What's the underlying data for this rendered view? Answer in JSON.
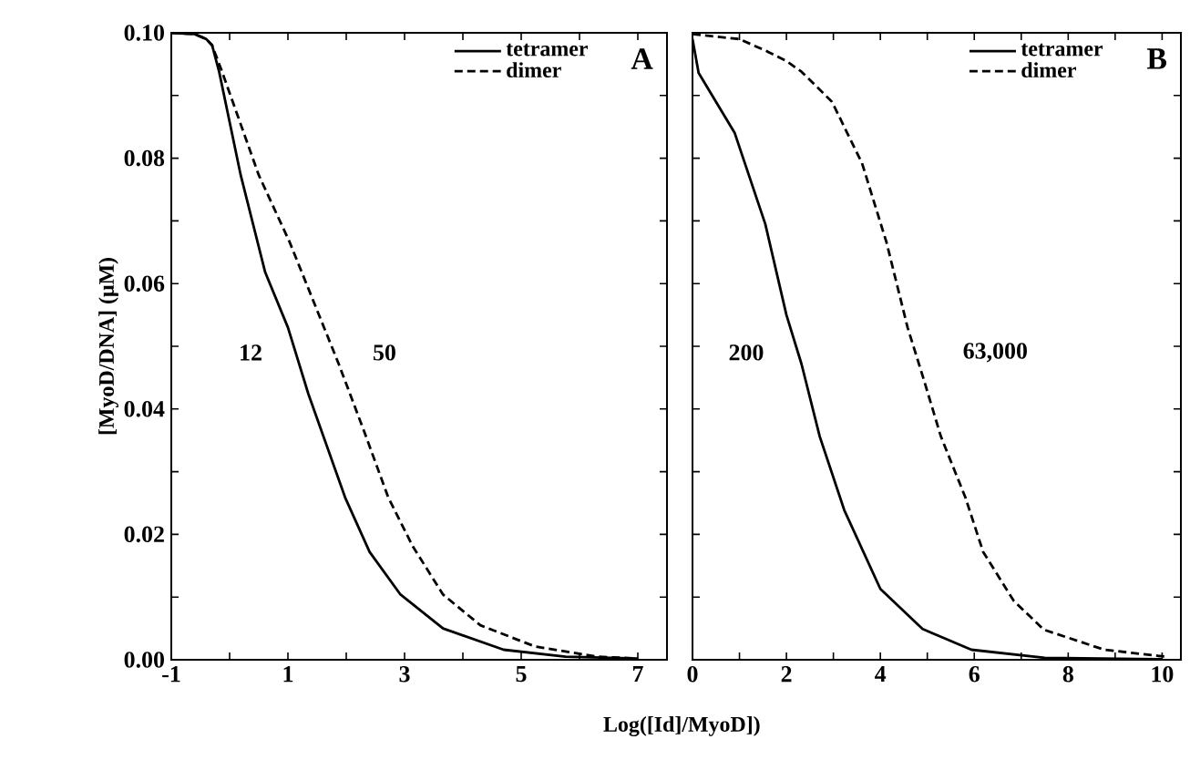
{
  "chart_data": [
    {
      "type": "line",
      "title": "A",
      "xlabel": "Log([Id]/MyoD])",
      "ylabel": "[MyoD/DNA]  (μM)",
      "legend": "top right",
      "marker": "none",
      "xlim": [
        -1,
        7.5
      ],
      "ylim": [
        0,
        0.1
      ],
      "xticks": [
        -1,
        {
          "value": 0,
          "label": null
        },
        1,
        {
          "value": 2,
          "label": null
        },
        3,
        {
          "value": 4,
          "label": null
        },
        5,
        {
          "value": 6,
          "label": null
        },
        7
      ],
      "yticks": [
        {
          "value": 0,
          "label": "0.00"
        },
        {
          "value": 0.01,
          "label": null
        },
        {
          "value": 0.02,
          "label": "0.02"
        },
        {
          "value": 0.03,
          "label": null
        },
        {
          "value": 0.04,
          "label": "0.04"
        },
        {
          "value": 0.05,
          "label": null
        },
        {
          "value": 0.06,
          "label": "0.06"
        },
        {
          "value": 0.07,
          "label": null
        },
        {
          "value": 0.08,
          "label": "0.08"
        },
        {
          "value": 0.09,
          "label": null
        },
        {
          "value": 0.1,
          "label": "0.10"
        }
      ],
      "series": [
        {
          "name": "tetramer",
          "color": "#000000",
          "line_style": "solid",
          "x": [
            -1,
            -0.6,
            -0.4,
            -0.3,
            -0.18,
            0.19,
            0.61,
            1.0,
            1.35,
            1.98,
            2.4,
            2.93,
            3.66,
            4.7,
            5.76,
            7
          ],
          "values": [
            0.1,
            0.0998,
            0.099,
            0.098,
            0.0938,
            0.0773,
            0.0618,
            0.053,
            0.0424,
            0.0259,
            0.0172,
            0.0104,
            0.005,
            0.0016,
            0.0005,
            0.0002
          ]
        },
        {
          "name": "dimer",
          "color": "#000000",
          "line_style": "dashed",
          "x": [
            -1,
            -0.6,
            -0.4,
            -0.3,
            -0.13,
            0.5,
            1.03,
            1.45,
            1.87,
            2.3,
            2.72,
            3.14,
            3.66,
            4.3,
            5.24,
            6.3,
            7
          ],
          "values": [
            0.1,
            0.0998,
            0.099,
            0.098,
            0.0938,
            0.0773,
            0.0666,
            0.0569,
            0.0472,
            0.0366,
            0.0259,
            0.0181,
            0.0104,
            0.0055,
            0.0021,
            0.0005,
            0.0002
          ]
        }
      ],
      "annotations": [
        "12",
        "50"
      ]
    },
    {
      "type": "line",
      "title": "B",
      "legend": "top right",
      "marker": "none",
      "tick_labels": "x",
      "xlim": [
        0,
        10.4
      ],
      "ylim": [
        0,
        0.1
      ],
      "xticks": [
        0,
        {
          "value": 1,
          "label": null
        },
        2,
        {
          "value": 3,
          "label": null
        },
        4,
        {
          "value": 5,
          "label": null
        },
        6,
        {
          "value": 7,
          "label": null
        },
        8,
        {
          "value": 9,
          "label": null
        },
        10
      ],
      "yticks": [
        {
          "value": 0,
          "label": null
        },
        {
          "value": 0.01,
          "label": null
        },
        {
          "value": 0.02,
          "label": null
        },
        {
          "value": 0.03,
          "label": null
        },
        {
          "value": 0.04,
          "label": null
        },
        {
          "value": 0.05,
          "label": null
        },
        {
          "value": 0.06,
          "label": null
        },
        {
          "value": 0.07,
          "label": null
        },
        {
          "value": 0.08,
          "label": null
        },
        {
          "value": 0.09,
          "label": null
        },
        {
          "value": 0.1,
          "label": null
        }
      ],
      "series": [
        {
          "name": "tetramer",
          "color": "#000000",
          "line_style": "solid",
          "x": [
            0,
            0.13,
            0.9,
            1.55,
            2.0,
            2.32,
            2.71,
            3.23,
            4.0,
            4.9,
            5.94,
            7.5,
            10
          ],
          "values": [
            0.099,
            0.0936,
            0.084,
            0.0695,
            0.055,
            0.0472,
            0.0356,
            0.0239,
            0.0113,
            0.0049,
            0.0016,
            0.0003,
            0.0001
          ]
        },
        {
          "name": "dimer",
          "color": "#000000",
          "line_style": "dashed",
          "x": [
            0,
            1,
            1.6,
            2,
            2.32,
            2.97,
            3.61,
            4.13,
            4.58,
            4.9,
            5.29,
            5.81,
            6.19,
            6.84,
            7.48,
            8.77,
            10.06
          ],
          "values": [
            0.0998,
            0.099,
            0.097,
            0.0955,
            0.0938,
            0.089,
            0.0792,
            0.0666,
            0.053,
            0.0453,
            0.0356,
            0.0259,
            0.0172,
            0.0094,
            0.0048,
            0.0016,
            0.0005
          ]
        }
      ],
      "annotations": [
        "200",
        "63,000"
      ]
    }
  ]
}
